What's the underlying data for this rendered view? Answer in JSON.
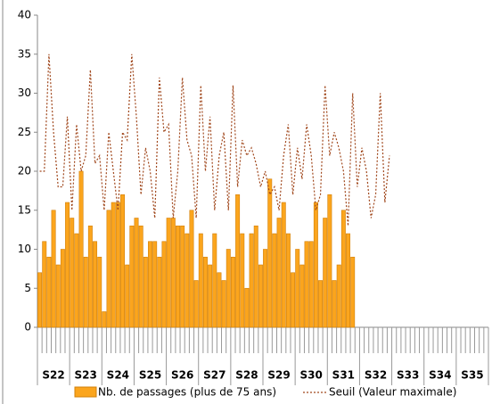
{
  "chart_data": {
    "type": "bar-line",
    "categories": [
      null,
      null,
      null,
      null,
      null,
      null,
      null,
      null,
      null,
      null,
      null,
      null,
      null,
      null,
      null,
      null,
      null,
      null,
      null,
      null,
      null,
      null,
      null,
      null,
      null,
      null,
      null,
      null,
      null,
      null,
      null,
      null,
      null,
      null,
      null,
      null,
      null,
      null,
      null,
      null,
      null,
      null,
      null,
      null,
      null,
      null,
      null,
      null,
      null,
      null,
      null,
      null,
      null,
      null,
      null,
      null,
      null,
      null,
      null,
      null,
      null,
      null,
      null,
      null,
      null,
      null,
      null,
      null,
      null,
      null,
      null,
      null,
      null,
      null,
      null,
      null,
      null,
      null,
      null,
      null,
      null,
      null,
      null,
      null,
      null,
      null,
      null,
      null,
      null,
      null,
      null,
      null,
      null,
      null,
      null,
      null,
      null,
      null
    ],
    "weeks": [
      "S22",
      "S23",
      "S24",
      "S25",
      "S26",
      "S27",
      "S28",
      "S29",
      "S30",
      "S31",
      "S32",
      "S33",
      "S34",
      "S35"
    ],
    "series": [
      {
        "name": "Nb. de passages (plus de 75 ans)",
        "type": "bar",
        "color": "#fba51d",
        "edge": "#d2800a",
        "values": [
          7,
          11,
          9,
          15,
          8,
          10,
          16,
          14,
          12,
          20,
          9,
          13,
          11,
          9,
          2,
          15,
          16,
          16,
          17,
          8,
          13,
          14,
          13,
          9,
          11,
          11,
          9,
          11,
          14,
          14,
          13,
          13,
          12,
          15,
          6,
          12,
          9,
          8,
          12,
          7,
          6,
          10,
          9,
          17,
          12,
          5,
          12,
          13,
          8,
          10,
          19,
          12,
          14,
          16,
          12,
          7,
          10,
          8,
          11,
          11,
          16,
          6,
          14,
          17,
          6,
          8,
          15,
          12,
          9,
          null,
          null,
          null,
          null,
          null,
          null,
          null,
          null,
          null,
          null,
          null,
          null,
          null,
          null,
          null,
          null,
          null,
          null,
          null,
          null,
          null,
          null,
          null,
          null,
          null,
          null,
          null,
          null,
          null
        ]
      },
      {
        "name": "Seuil (Valeur maximale)",
        "type": "line",
        "color": "#a0471c",
        "values": [
          20,
          20,
          35,
          25,
          18,
          18,
          27,
          15,
          26,
          20,
          22,
          33,
          21,
          22,
          15,
          25,
          20,
          15,
          25,
          24,
          35,
          27,
          17,
          23,
          20,
          14,
          32,
          25,
          26,
          14,
          20,
          32,
          24,
          22,
          14,
          31,
          20,
          27,
          15,
          22,
          25,
          15,
          31,
          18,
          24,
          22,
          23,
          21,
          18,
          20,
          17,
          18,
          15,
          22,
          26,
          17,
          23,
          19,
          26,
          22,
          15,
          17,
          31,
          22,
          25,
          23,
          20,
          13,
          30,
          18,
          23,
          20,
          14,
          17,
          30,
          16,
          22,
          null,
          null,
          null,
          null,
          null,
          null,
          null,
          null,
          null,
          null,
          null,
          null,
          null,
          null,
          null,
          null,
          null,
          null,
          null,
          null,
          null
        ]
      }
    ],
    "ylim": [
      0,
      40
    ],
    "yticks": [
      0,
      5,
      10,
      15,
      20,
      25,
      30,
      35,
      40
    ],
    "grid": false,
    "legend": "bottom"
  }
}
